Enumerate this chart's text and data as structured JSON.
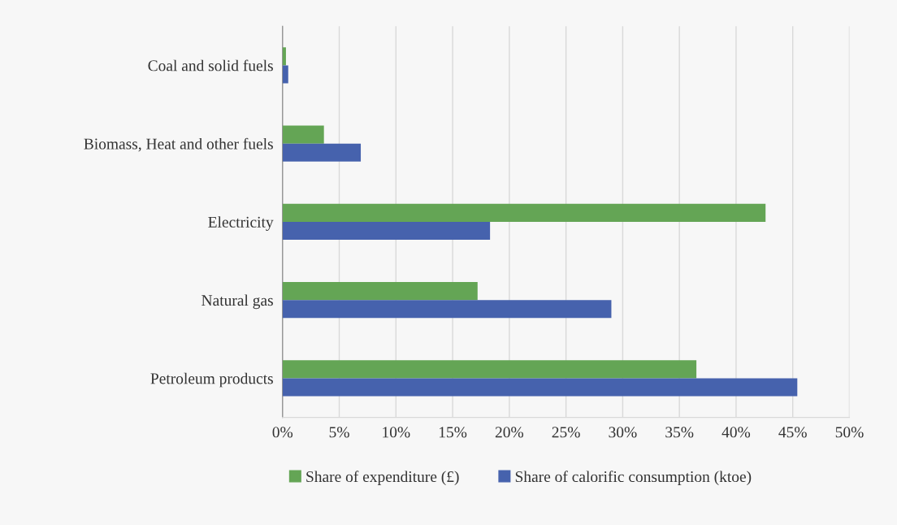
{
  "chart_data": {
    "type": "bar",
    "orientation": "horizontal",
    "categories": [
      "Coal and solid fuels",
      "Biomass, Heat and other fuels",
      "Electricity",
      "Natural gas",
      "Petroleum products"
    ],
    "series": [
      {
        "name": "Share of expenditure (£)",
        "color": "#64a555",
        "values": [
          0.3,
          3.65,
          42.6,
          17.2,
          36.5
        ]
      },
      {
        "name": "Share of calorific consumption (ktoe)",
        "color": "#4662ad",
        "values": [
          0.5,
          6.9,
          18.3,
          29.0,
          45.4
        ]
      }
    ],
    "xlim": [
      0,
      50
    ],
    "xticks": [
      {
        "value": 0,
        "label": "0%"
      },
      {
        "value": 5,
        "label": "5%"
      },
      {
        "value": 10,
        "label": "10%"
      },
      {
        "value": 15,
        "label": "15%"
      },
      {
        "value": 20,
        "label": "20%"
      },
      {
        "value": 25,
        "label": "25%"
      },
      {
        "value": 30,
        "label": "30%"
      },
      {
        "value": 35,
        "label": "35%"
      },
      {
        "value": 40,
        "label": "40%"
      },
      {
        "value": 45,
        "label": "45%"
      },
      {
        "value": 50,
        "label": "50%"
      }
    ],
    "grid": "x",
    "legend": "bottom"
  }
}
